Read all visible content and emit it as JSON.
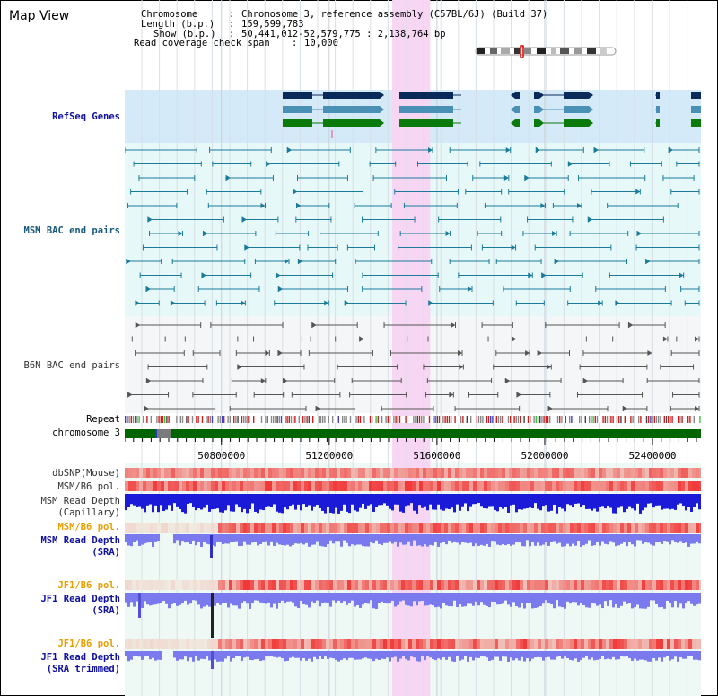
{
  "window": {
    "title": "Map View"
  },
  "info": {
    "chromosome_key": "Chromosome",
    "chromosome_value": "Chromosome 3, reference assembly (C57BL/6J) (Build 37)",
    "length_key": "Length (b.p.)",
    "length_value": "159,599,783",
    "show_key": "Show (b.p.)",
    "show_value": "50,441,012-52,579,775 : 2,138,764 bp",
    "coverage_key": "Read coverage check span",
    "coverage_value": "10,000"
  },
  "tracks": {
    "refseq": "RefSeq Genes",
    "msm_bac": "MSM BAC end pairs",
    "b6n_bac": "B6N BAC end pairs",
    "repeat": "Repeat",
    "chromosome": "chromosome 3",
    "dbsnp": "dbSNP(Mouse)",
    "msm_b6_pol_1": "MSM/B6 pol.",
    "msm_depth_cap_1": "MSM Read Depth",
    "msm_depth_cap_2": "(Capillary)",
    "msm_b6_pol_2": "MSM/B6 pol.",
    "msm_depth_sra_1": "MSM Read Depth",
    "msm_depth_sra_2": "(SRA)",
    "jf1_b6_pol_1": "JF1/B6 pol.",
    "jf1_depth_sra_1": "JF1 Read Depth",
    "jf1_depth_sra_2": "(SRA)",
    "jf1_b6_pol_2": "JF1/B6 pol.",
    "jf1_depth_trim_1": "JF1 Read Depth",
    "jf1_depth_trim_2": "(SRA trimmed)"
  },
  "axis": {
    "range": [
      50441012,
      52579775
    ],
    "ticks": [
      "50800000",
      "51200000",
      "51600000",
      "52000000",
      "52400000"
    ],
    "tick_values": [
      50800000,
      51200000,
      51600000,
      52000000,
      52400000
    ]
  },
  "highlight": {
    "start": 51434000,
    "end": 51575000,
    "color": "#f7d6f4"
  },
  "colors": {
    "refseq_bg": "#d4eaf8",
    "msm_bg": "#e6f8f8",
    "b6n_bg": "#f4f6f8",
    "gene_navy": "#0a2a5a",
    "gene_steel": "#4a8fb4",
    "gene_green": "#0a7a0a",
    "msm_bac": "#1a7a9a",
    "b6n_bac": "#555555",
    "chrom_green": "#006400",
    "label_blue": "#1010a0",
    "label_teal": "#1a5a7a",
    "label_orange": "#e8a000",
    "label_gray": "#333333"
  }
}
